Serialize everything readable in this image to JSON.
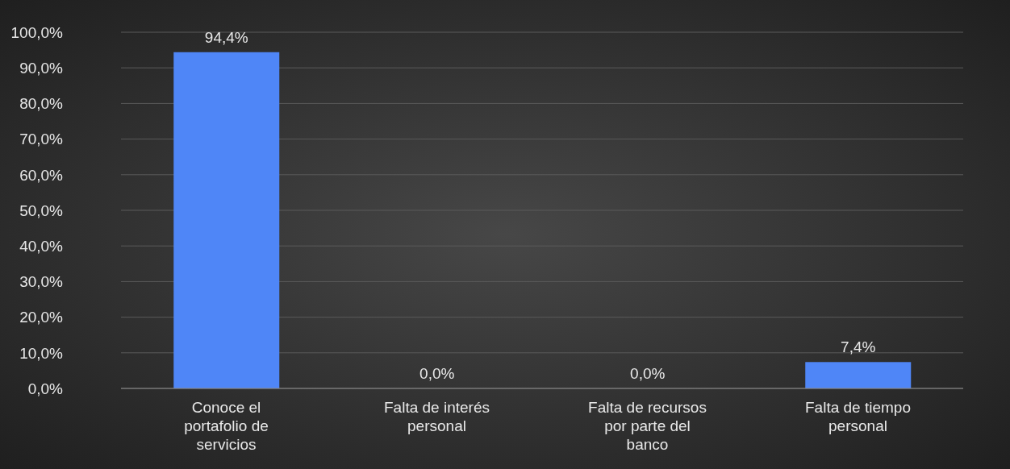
{
  "chart_data": {
    "type": "bar",
    "categories": [
      "Conoce el portafolio de servicios",
      "Falta de interés personal",
      "Falta de recursos por parte del banco",
      "Falta de tiempo personal"
    ],
    "values": [
      94.4,
      0.0,
      0.0,
      7.4
    ],
    "value_labels": [
      "94,4%",
      "0,0%",
      "0,0%",
      "7,4%"
    ],
    "color": "#4f86f7",
    "ylim": [
      0,
      100
    ],
    "yticks": [
      {
        "value": 0,
        "label": "0,0%"
      },
      {
        "value": 10,
        "label": "10,0%"
      },
      {
        "value": 20,
        "label": "20,0%"
      },
      {
        "value": 30,
        "label": "30,0%"
      },
      {
        "value": 40,
        "label": "40,0%"
      },
      {
        "value": 50,
        "label": "50,0%"
      },
      {
        "value": 60,
        "label": "60,0%"
      },
      {
        "value": 70,
        "label": "70,0%"
      },
      {
        "value": 80,
        "label": "80,0%"
      },
      {
        "value": 90,
        "label": "90,0%"
      },
      {
        "value": 100,
        "label": "100,0%"
      }
    ],
    "grid": "y",
    "legend": false
  }
}
